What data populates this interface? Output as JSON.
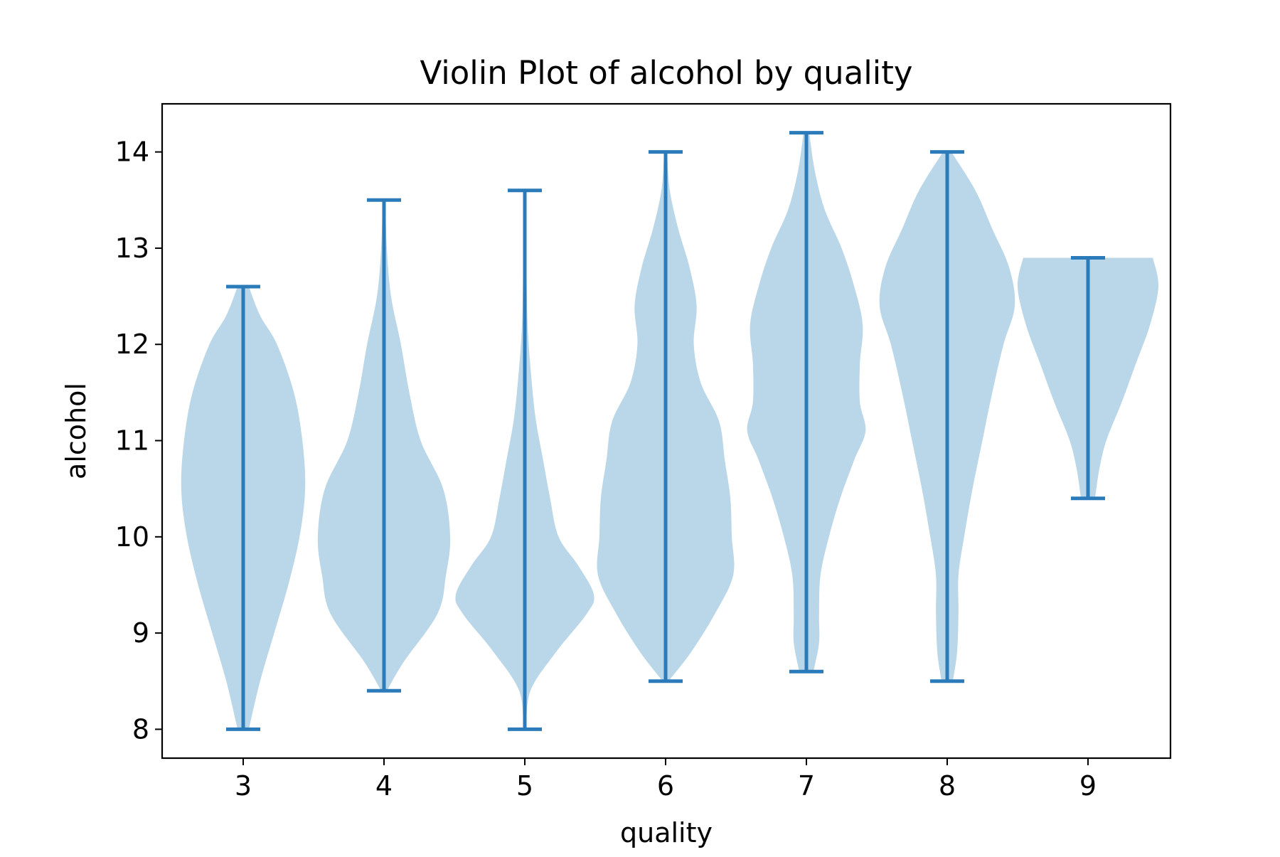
{
  "chart_data": {
    "type": "violin",
    "title": "Violin Plot of alcohol by quality",
    "xlabel": "quality",
    "ylabel": "alcohol",
    "ylim": [
      7.7,
      14.5
    ],
    "yticks": [
      8,
      9,
      10,
      11,
      12,
      13,
      14
    ],
    "colors": {
      "body": "#bad6e9",
      "lines": "#2b7bba"
    },
    "categories": [
      "3",
      "4",
      "5",
      "6",
      "7",
      "8",
      "9"
    ],
    "violins": [
      {
        "category": "3",
        "min": 8.0,
        "max": 12.6,
        "profile": [
          [
            8.0,
            0.04
          ],
          [
            8.5,
            0.12
          ],
          [
            9.0,
            0.22
          ],
          [
            9.5,
            0.32
          ],
          [
            10.0,
            0.4
          ],
          [
            10.5,
            0.44
          ],
          [
            11.0,
            0.42
          ],
          [
            11.5,
            0.36
          ],
          [
            12.0,
            0.24
          ],
          [
            12.3,
            0.12
          ],
          [
            12.6,
            0.04
          ]
        ]
      },
      {
        "category": "4",
        "min": 8.4,
        "max": 13.5,
        "profile": [
          [
            8.4,
            0.02
          ],
          [
            8.7,
            0.14
          ],
          [
            9.2,
            0.38
          ],
          [
            9.6,
            0.44
          ],
          [
            10.0,
            0.47
          ],
          [
            10.5,
            0.42
          ],
          [
            11.0,
            0.26
          ],
          [
            11.5,
            0.18
          ],
          [
            12.0,
            0.12
          ],
          [
            12.5,
            0.05
          ],
          [
            13.0,
            0.02
          ],
          [
            13.5,
            0.01
          ]
        ]
      },
      {
        "category": "5",
        "min": 8.0,
        "max": 13.6,
        "profile": [
          [
            8.0,
            0.01
          ],
          [
            8.4,
            0.04
          ],
          [
            8.8,
            0.22
          ],
          [
            9.2,
            0.44
          ],
          [
            9.4,
            0.49
          ],
          [
            9.7,
            0.38
          ],
          [
            10.0,
            0.24
          ],
          [
            10.4,
            0.18
          ],
          [
            10.8,
            0.13
          ],
          [
            11.2,
            0.08
          ],
          [
            11.6,
            0.05
          ],
          [
            12.2,
            0.02
          ],
          [
            13.0,
            0.01
          ],
          [
            13.6,
            0.005
          ]
        ]
      },
      {
        "category": "6",
        "min": 8.5,
        "max": 14.0,
        "profile": [
          [
            8.5,
            0.02
          ],
          [
            8.8,
            0.18
          ],
          [
            9.2,
            0.35
          ],
          [
            9.6,
            0.48
          ],
          [
            10.0,
            0.47
          ],
          [
            10.4,
            0.46
          ],
          [
            10.8,
            0.42
          ],
          [
            11.2,
            0.38
          ],
          [
            11.6,
            0.25
          ],
          [
            12.0,
            0.2
          ],
          [
            12.4,
            0.22
          ],
          [
            12.8,
            0.17
          ],
          [
            13.2,
            0.09
          ],
          [
            13.6,
            0.03
          ],
          [
            14.0,
            0.01
          ]
        ]
      },
      {
        "category": "7",
        "min": 8.6,
        "max": 14.2,
        "profile": [
          [
            8.6,
            0.05
          ],
          [
            8.9,
            0.09
          ],
          [
            9.2,
            0.09
          ],
          [
            9.6,
            0.1
          ],
          [
            10.0,
            0.16
          ],
          [
            10.4,
            0.24
          ],
          [
            10.8,
            0.34
          ],
          [
            11.1,
            0.42
          ],
          [
            11.4,
            0.38
          ],
          [
            11.8,
            0.38
          ],
          [
            12.2,
            0.4
          ],
          [
            12.6,
            0.34
          ],
          [
            13.0,
            0.25
          ],
          [
            13.4,
            0.13
          ],
          [
            13.8,
            0.06
          ],
          [
            14.2,
            0.02
          ]
        ]
      },
      {
        "category": "8",
        "min": 8.5,
        "max": 14.0,
        "profile": [
          [
            8.5,
            0.04
          ],
          [
            8.8,
            0.07
          ],
          [
            9.2,
            0.08
          ],
          [
            9.6,
            0.08
          ],
          [
            10.0,
            0.12
          ],
          [
            10.5,
            0.18
          ],
          [
            11.0,
            0.25
          ],
          [
            11.5,
            0.32
          ],
          [
            12.0,
            0.4
          ],
          [
            12.4,
            0.48
          ],
          [
            12.8,
            0.44
          ],
          [
            13.2,
            0.32
          ],
          [
            13.6,
            0.2
          ],
          [
            14.0,
            0.03
          ]
        ]
      },
      {
        "category": "9",
        "min": 10.4,
        "max": 12.9,
        "profile": [
          [
            10.4,
            0.05
          ],
          [
            10.7,
            0.08
          ],
          [
            11.0,
            0.13
          ],
          [
            11.4,
            0.24
          ],
          [
            11.8,
            0.34
          ],
          [
            12.2,
            0.44
          ],
          [
            12.6,
            0.5
          ],
          [
            12.9,
            0.46
          ]
        ]
      }
    ]
  }
}
